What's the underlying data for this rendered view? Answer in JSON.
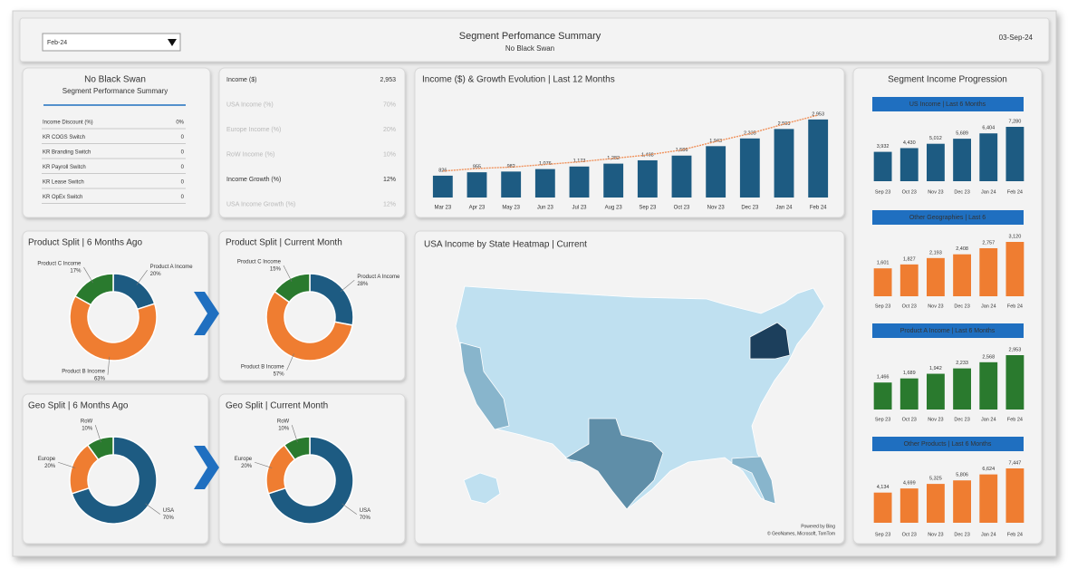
{
  "header": {
    "dropdown": "Feb-24",
    "title": "Segment Perfomance Summary",
    "subtitle": "No Black Swan",
    "date": "03-Sep-24"
  },
  "settings_panel": {
    "title": "No Black Swan",
    "subtitle": "Segment Performance Summary",
    "rows": [
      [
        "Income Discount (%)",
        "0%"
      ],
      [
        "KR COGS Switch",
        "0"
      ],
      [
        "KR Branding Switch",
        "0"
      ],
      [
        "KR Payroll Switch",
        "0"
      ],
      [
        "KR Lease Switch",
        "0"
      ],
      [
        "KR OpEx Switch",
        "0"
      ]
    ]
  },
  "kpi_panel": {
    "rows": [
      [
        "Income ($)",
        "2,953"
      ],
      [
        "USA Income (%)",
        "70%"
      ],
      [
        "Europe Income (%)",
        "20%"
      ],
      [
        "RoW Income (%)",
        "10%"
      ],
      [
        "Income Growth (%)",
        "12%"
      ],
      [
        "USA Income Growth (%)",
        "12%"
      ]
    ]
  },
  "map_panel": {
    "title": "USA Income by State Heatmap | Current",
    "credits": [
      "Powered by Bing",
      "© GeoNames, Microsoft, TomTom"
    ]
  },
  "progression_panel": {
    "title": "Segment Income Progression"
  },
  "chart_data": [
    {
      "type": "bar",
      "title": "Income ($) & Growth Evolution | Last 12 Months",
      "categories": [
        "Mar 23",
        "Apr 23",
        "May 23",
        "Jun 23",
        "Jul 23",
        "Aug 23",
        "Sep 23",
        "Oct 23",
        "Nov 23",
        "Dec 23",
        "Jan 24",
        "Feb 24"
      ],
      "series": [
        {
          "type": "bar",
          "color": "#1d5b82",
          "values": [
            826,
            955,
            982,
            1076,
            1173,
            1282,
            1408,
            1586,
            1943,
            2235,
            2593,
            2953
          ],
          "value_labels": [
            "826",
            "955",
            "982",
            "1,076",
            "1,173",
            "1,282",
            "1,408",
            "1,586",
            "1,943",
            "2,235",
            "2,593",
            "2,953"
          ]
        },
        {
          "type": "line",
          "color": "#f0915a",
          "values": [
            1000,
            1100,
            1150,
            1250,
            1350,
            1480,
            1610,
            1800,
            2120,
            2420,
            2780,
            3120
          ]
        }
      ]
    },
    {
      "type": "donut",
      "title": "Product Split | 6 Months Ago",
      "categories": [
        "Product A Income",
        "Product B Income",
        "Product C Income"
      ],
      "values": [
        20,
        63,
        17
      ],
      "value_labels": [
        "20%",
        "63%",
        "17%"
      ],
      "colors": [
        "#1d5b82",
        "#ef7d31",
        "#2a7a2e"
      ]
    },
    {
      "type": "donut",
      "title": "Product Split | Current Month",
      "categories": [
        "Product A Income",
        "Product B Income",
        "Product C Income"
      ],
      "values": [
        28,
        57,
        15
      ],
      "value_labels": [
        "28%",
        "57%",
        "15%"
      ],
      "colors": [
        "#1d5b82",
        "#ef7d31",
        "#2a7a2e"
      ]
    },
    {
      "type": "donut",
      "title": "Geo Split | 6 Months Ago",
      "categories": [
        "USA",
        "Europe",
        "RoW"
      ],
      "values": [
        70,
        20,
        10
      ],
      "value_labels": [
        "70%",
        "20%",
        "10%"
      ],
      "colors": [
        "#1d5b82",
        "#ef7d31",
        "#2a7a2e"
      ]
    },
    {
      "type": "donut",
      "title": "Geo Split | Current Month",
      "categories": [
        "USA",
        "Europe",
        "RoW"
      ],
      "values": [
        70,
        20,
        10
      ],
      "value_labels": [
        "70%",
        "20%",
        "10%"
      ],
      "colors": [
        "#1d5b82",
        "#ef7d31",
        "#2a7a2e"
      ]
    },
    {
      "type": "bar",
      "title": "US Income | Last 6 Months",
      "categories": [
        "Sep 23",
        "Oct 23",
        "Nov 23",
        "Dec 23",
        "Jan 24",
        "Feb 24"
      ],
      "values": [
        3932,
        4430,
        5012,
        5689,
        6404,
        7280
      ],
      "value_labels": [
        "3,932",
        "4,430",
        "5,012",
        "5,689",
        "6,404",
        "7,280"
      ],
      "color": "#1d5b82"
    },
    {
      "type": "bar",
      "title": "Other Geographies | Last 6",
      "categories": [
        "Sep 23",
        "Oct 23",
        "Nov 23",
        "Dec 23",
        "Jan 24",
        "Feb 24"
      ],
      "values": [
        1601,
        1827,
        2193,
        2408,
        2757,
        3120
      ],
      "value_labels": [
        "1,601",
        "1,827",
        "2,193",
        "2,408",
        "2,757",
        "3,120"
      ],
      "color": "#ef7d31"
    },
    {
      "type": "bar",
      "title": "Product A Income | Last 6 Months",
      "categories": [
        "Sep 23",
        "Oct 23",
        "Nov 23",
        "Dec 23",
        "Jan 24",
        "Feb 24"
      ],
      "values": [
        1466,
        1689,
        1942,
        2233,
        2568,
        2953
      ],
      "value_labels": [
        "1,466",
        "1,689",
        "1,942",
        "2,233",
        "2,568",
        "2,953"
      ],
      "color": "#2a7a2e"
    },
    {
      "type": "bar",
      "title": "Other Products | Last 6 Months",
      "categories": [
        "Sep 23",
        "Oct 23",
        "Nov 23",
        "Dec 23",
        "Jan 24",
        "Feb 24"
      ],
      "values": [
        4134,
        4699,
        5325,
        5806,
        6624,
        7447
      ],
      "value_labels": [
        "4,134",
        "4,699",
        "5,325",
        "5,806",
        "6,624",
        "7,447"
      ],
      "color": "#ef7d31"
    }
  ]
}
